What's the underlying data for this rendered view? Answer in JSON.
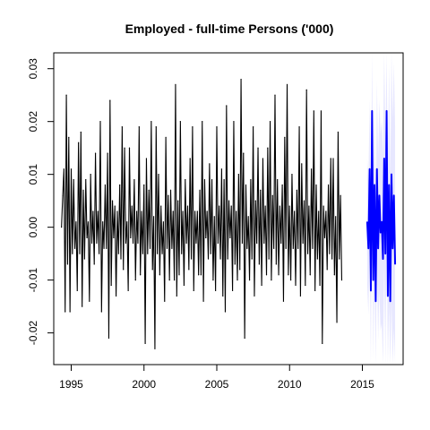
{
  "chart_data": {
    "type": "line",
    "title": "Employed - full-time Persons ('000)",
    "xlabel": "",
    "ylabel": "",
    "xlim": [
      1993.8,
      2017.8
    ],
    "ylim": [
      -0.026,
      0.033
    ],
    "x_ticks": [
      1995,
      2000,
      2005,
      2010,
      2015
    ],
    "x_tick_labels": [
      "1995",
      "2000",
      "2005",
      "2010",
      "2015"
    ],
    "y_ticks": [
      -0.02,
      -0.01,
      0.0,
      0.01,
      0.02,
      0.03
    ],
    "y_tick_labels": [
      "-0.02",
      "-0.01",
      "0.00",
      "0.01",
      "0.02",
      "0.03"
    ],
    "grid": false,
    "legend": "none",
    "series": [
      {
        "role": "observed",
        "color": "#000000",
        "x_start": 1994.333,
        "x_step": 0.08333,
        "values": [
          0.0,
          0.006,
          0.011,
          -0.016,
          0.025,
          -0.007,
          0.017,
          -0.016,
          0.011,
          -0.005,
          0.009,
          -0.004,
          0.001,
          -0.012,
          0.016,
          -0.005,
          0.018,
          -0.015,
          0.007,
          -0.006,
          0.009,
          -0.002,
          0.001,
          -0.014,
          0.01,
          -0.003,
          0.003,
          -0.007,
          0.014,
          -0.003,
          0.003,
          -0.005,
          0.02,
          -0.016,
          0.001,
          -0.004,
          0.008,
          -0.004,
          0.014,
          -0.021,
          0.024,
          -0.011,
          0.005,
          -0.002,
          0.004,
          -0.013,
          0.003,
          -0.005,
          0.008,
          -0.006,
          0.019,
          -0.008,
          0.015,
          -0.003,
          0.001,
          -0.012,
          0.015,
          -0.002,
          0.004,
          -0.003,
          0.009,
          -0.01,
          0.003,
          -0.003,
          0.019,
          -0.009,
          0.003,
          -0.005,
          0.008,
          -0.022,
          0.013,
          -0.005,
          0.007,
          -0.004,
          0.02,
          -0.008,
          0.002,
          -0.023,
          0.019,
          -0.005,
          0.01,
          -0.009,
          0.004,
          -0.005,
          0.001,
          -0.014,
          0.017,
          -0.004,
          0.006,
          -0.01,
          0.007,
          -0.004,
          0.003,
          -0.01,
          0.027,
          -0.013,
          0.005,
          -0.009,
          0.02,
          -0.005,
          0.003,
          -0.011,
          0.009,
          -0.003,
          0.004,
          -0.008,
          0.013,
          -0.006,
          0.019,
          -0.012,
          0.003,
          -0.003,
          0.003,
          -0.009,
          0.007,
          -0.009,
          0.02,
          -0.014,
          0.009,
          -0.002,
          0.003,
          -0.006,
          0.012,
          -0.005,
          0.009,
          -0.01,
          0.002,
          -0.012,
          0.019,
          -0.003,
          0.004,
          -0.006,
          0.011,
          -0.013,
          0.009,
          -0.016,
          0.023,
          -0.006,
          0.005,
          -0.002,
          0.004,
          -0.012,
          0.02,
          -0.007,
          0.003,
          -0.01,
          0.01,
          -0.008,
          0.028,
          -0.003,
          0.014,
          -0.021,
          0.008,
          -0.004,
          0.002,
          -0.01,
          0.009,
          -0.006,
          0.019,
          -0.013,
          0.005,
          -0.003,
          0.015,
          -0.007,
          0.007,
          -0.011,
          0.013,
          -0.003,
          0.004,
          -0.009,
          0.015,
          -0.006,
          0.02,
          -0.01,
          0.006,
          -0.004,
          0.025,
          -0.007,
          0.009,
          -0.009,
          0.004,
          -0.003,
          0.008,
          -0.014,
          0.017,
          -0.004,
          0.027,
          -0.009,
          0.004,
          -0.01,
          0.01,
          -0.004,
          0.003,
          -0.011,
          0.007,
          -0.004,
          0.019,
          -0.013,
          0.012,
          -0.003,
          0.005,
          -0.011,
          0.026,
          -0.005,
          0.004,
          -0.009,
          0.011,
          -0.004,
          0.022,
          -0.012,
          0.008,
          -0.006,
          0.003,
          -0.011,
          0.022,
          -0.022,
          0.004,
          -0.002,
          0.003,
          -0.008,
          0.008,
          -0.005,
          0.013,
          -0.006,
          0.013,
          -0.009,
          0.002,
          -0.018,
          0.018,
          -0.006,
          0.006,
          -0.01
        ]
      },
      {
        "role": "forecast",
        "color": "#0000ff",
        "x_start": 2015.333,
        "x_step": 0.08333,
        "values": [
          0.001,
          -0.004,
          0.011,
          -0.012,
          0.022,
          -0.01,
          0.008,
          -0.014,
          0.011,
          -0.004,
          0.006,
          -0.001,
          0.001,
          -0.006,
          0.013,
          -0.005,
          0.022,
          -0.013,
          0.008,
          -0.014,
          0.01,
          -0.004,
          0.006,
          -0.007
        ],
        "interval_color": "#d3d3ff"
      }
    ]
  }
}
